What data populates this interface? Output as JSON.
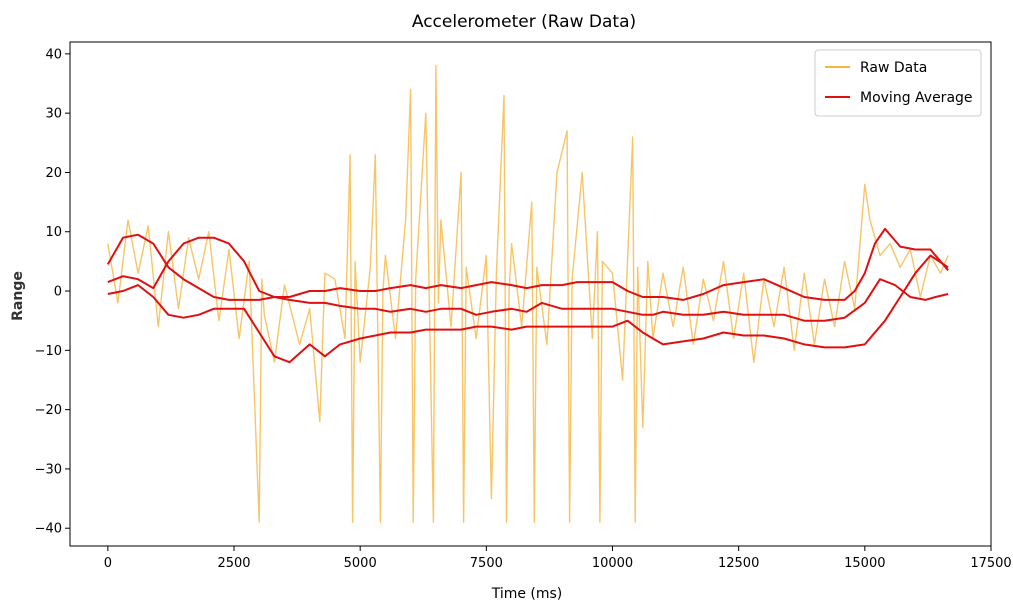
{
  "chart_data": {
    "type": "line",
    "title": "Accelerometer (Raw Data)",
    "xlabel": "Time (ms)",
    "ylabel": "Range",
    "xlim": [
      -750,
      17500
    ],
    "ylim": [
      -43,
      42
    ],
    "x_ticks": [
      0,
      2500,
      5000,
      7500,
      10000,
      12500,
      15000,
      17500
    ],
    "y_ticks": [
      -40,
      -30,
      -20,
      -10,
      0,
      10,
      20,
      30,
      40
    ],
    "grid": false,
    "legend": {
      "position": "top-right",
      "entries": [
        "Raw Data",
        "Moving Average"
      ]
    },
    "colors": {
      "raw": "#f5b642",
      "average": "#e01010"
    },
    "series": [
      {
        "name": "Raw Data",
        "role": "raw",
        "x": [
          0,
          200,
          400,
          600,
          800,
          1000,
          1200,
          1400,
          1600,
          1800,
          2000,
          2200,
          2400,
          2600,
          2800,
          3000,
          3050,
          3100,
          3300,
          3500,
          3800,
          4000,
          4200,
          4300,
          4500,
          4700,
          4800,
          4850,
          4900,
          5000,
          5200,
          5300,
          5400,
          5450,
          5500,
          5700,
          5900,
          6000,
          6050,
          6100,
          6300,
          6450,
          6500,
          6550,
          6600,
          6800,
          7000,
          7050,
          7100,
          7300,
          7500,
          7600,
          7700,
          7850,
          7900,
          7950,
          8000,
          8200,
          8400,
          8450,
          8500,
          8700,
          8900,
          9100,
          9150,
          9200,
          9400,
          9600,
          9700,
          9750,
          9800,
          10000,
          10200,
          10400,
          10450,
          10500,
          10600,
          10700,
          10800,
          11000,
          11200,
          11400,
          11600,
          11800,
          12000,
          12200,
          12400,
          12600,
          12800,
          13000,
          13200,
          13400,
          13600,
          13800,
          14000,
          14200,
          14400,
          14600,
          14800,
          15000,
          15100,
          15300,
          15500,
          15700,
          15900,
          16100,
          16300,
          16500,
          16650
        ],
        "y": [
          8,
          -2,
          12,
          3,
          11,
          -6,
          10,
          -3,
          9,
          2,
          10,
          -5,
          7,
          -8,
          5,
          -39,
          2,
          -4,
          -12,
          1,
          -9,
          -3,
          -22,
          3,
          2,
          -8,
          23,
          -39,
          5,
          -12,
          4,
          23,
          -39,
          0,
          6,
          -8,
          12,
          34,
          -39,
          2,
          30,
          -39,
          38,
          -2,
          12,
          -6,
          20,
          -39,
          4,
          -8,
          6,
          -35,
          3,
          33,
          -39,
          0,
          8,
          -6,
          15,
          -39,
          4,
          -9,
          20,
          27,
          -39,
          2,
          20,
          -8,
          10,
          -39,
          5,
          3,
          -15,
          26,
          -39,
          4,
          -23,
          5,
          -8,
          3,
          -6,
          4,
          -9,
          2,
          -5,
          5,
          -8,
          3,
          -12,
          2,
          -6,
          4,
          -10,
          3,
          -9,
          2,
          -6,
          5,
          -3,
          18,
          12,
          6,
          8,
          4,
          7,
          -1,
          6,
          3,
          6
        ]
      },
      {
        "name": "Moving Average",
        "role": "average",
        "x": [
          0,
          300,
          600,
          900,
          1200,
          1500,
          1800,
          2100,
          2400,
          2700,
          3000,
          3300,
          3600,
          4000,
          4300,
          4600,
          5000,
          5300,
          5600,
          6000,
          6300,
          6600,
          7000,
          7300,
          7600,
          8000,
          8300,
          8600,
          9000,
          9300,
          9600,
          10000,
          10300,
          10600,
          10800,
          11000,
          11400,
          11800,
          12200,
          12600,
          13000,
          13400,
          13800,
          14200,
          14600,
          14800,
          15000,
          15200,
          15400,
          15700,
          16000,
          16300,
          16650
        ],
        "y": [
          4.5,
          9,
          9.5,
          8,
          4,
          2,
          0.5,
          -1,
          -1.5,
          -1.5,
          -1.5,
          -1,
          -1,
          0,
          0,
          0.5,
          0,
          0,
          0.5,
          1,
          0.5,
          1,
          0.5,
          1,
          1.5,
          1,
          0.5,
          1,
          1,
          1.5,
          1.5,
          1.5,
          0,
          -1,
          -1,
          -1,
          -1.5,
          -0.5,
          1,
          1.5,
          2,
          0.5,
          -1,
          -1.5,
          -1.5,
          0,
          3,
          8,
          10.5,
          7.5,
          7,
          7,
          3.5
        ]
      },
      {
        "name": "Moving Average",
        "role": "average",
        "x": [
          0,
          300,
          600,
          900,
          1200,
          1500,
          1800,
          2100,
          2400,
          2700,
          3000,
          3300,
          3600,
          4000,
          4300,
          4600,
          5000,
          5300,
          5600,
          6000,
          6300,
          6600,
          7000,
          7300,
          7600,
          8000,
          8300,
          8600,
          9000,
          9300,
          9600,
          10000,
          10300,
          10600,
          10800,
          11000,
          11400,
          11800,
          12200,
          12600,
          13000,
          13400,
          13800,
          14200,
          14600,
          15000,
          15300,
          15600,
          15900,
          16200,
          16400,
          16650
        ],
        "y": [
          1.5,
          2.5,
          2,
          0.5,
          5,
          8,
          9,
          9,
          8,
          5,
          0,
          -1,
          -1.5,
          -2,
          -2,
          -2.5,
          -3,
          -3,
          -3.5,
          -3,
          -3.5,
          -3,
          -3,
          -4,
          -3.5,
          -3,
          -3.5,
          -2,
          -3,
          -3,
          -3,
          -3,
          -3.5,
          -4,
          -4,
          -3.5,
          -4,
          -4,
          -3.5,
          -4,
          -4,
          -4,
          -5,
          -5,
          -4.5,
          -2,
          2,
          1,
          -1,
          -1.5,
          -1,
          -0.5
        ]
      },
      {
        "name": "Moving Average",
        "role": "average",
        "x": [
          0,
          300,
          600,
          900,
          1200,
          1500,
          1800,
          2100,
          2400,
          2700,
          3000,
          3300,
          3600,
          4000,
          4300,
          4600,
          5000,
          5300,
          5600,
          6000,
          6300,
          6600,
          7000,
          7300,
          7600,
          8000,
          8300,
          8600,
          9000,
          9300,
          9600,
          10000,
          10300,
          10600,
          10800,
          11000,
          11400,
          11800,
          12200,
          12600,
          13000,
          13400,
          13800,
          14200,
          14600,
          15000,
          15400,
          15700,
          16000,
          16300,
          16650
        ],
        "y": [
          -0.5,
          0,
          1,
          -1,
          -4,
          -4.5,
          -4,
          -3,
          -3,
          -3,
          -7,
          -11,
          -12,
          -9,
          -11,
          -9,
          -8,
          -7.5,
          -7,
          -7,
          -6.5,
          -6.5,
          -6.5,
          -6,
          -6,
          -6.5,
          -6,
          -6,
          -6,
          -6,
          -6,
          -6,
          -5,
          -7,
          -8,
          -9,
          -8.5,
          -8,
          -7,
          -7.5,
          -7.5,
          -8,
          -9,
          -9.5,
          -9.5,
          -9,
          -5,
          -1,
          3,
          6,
          4
        ]
      }
    ]
  }
}
